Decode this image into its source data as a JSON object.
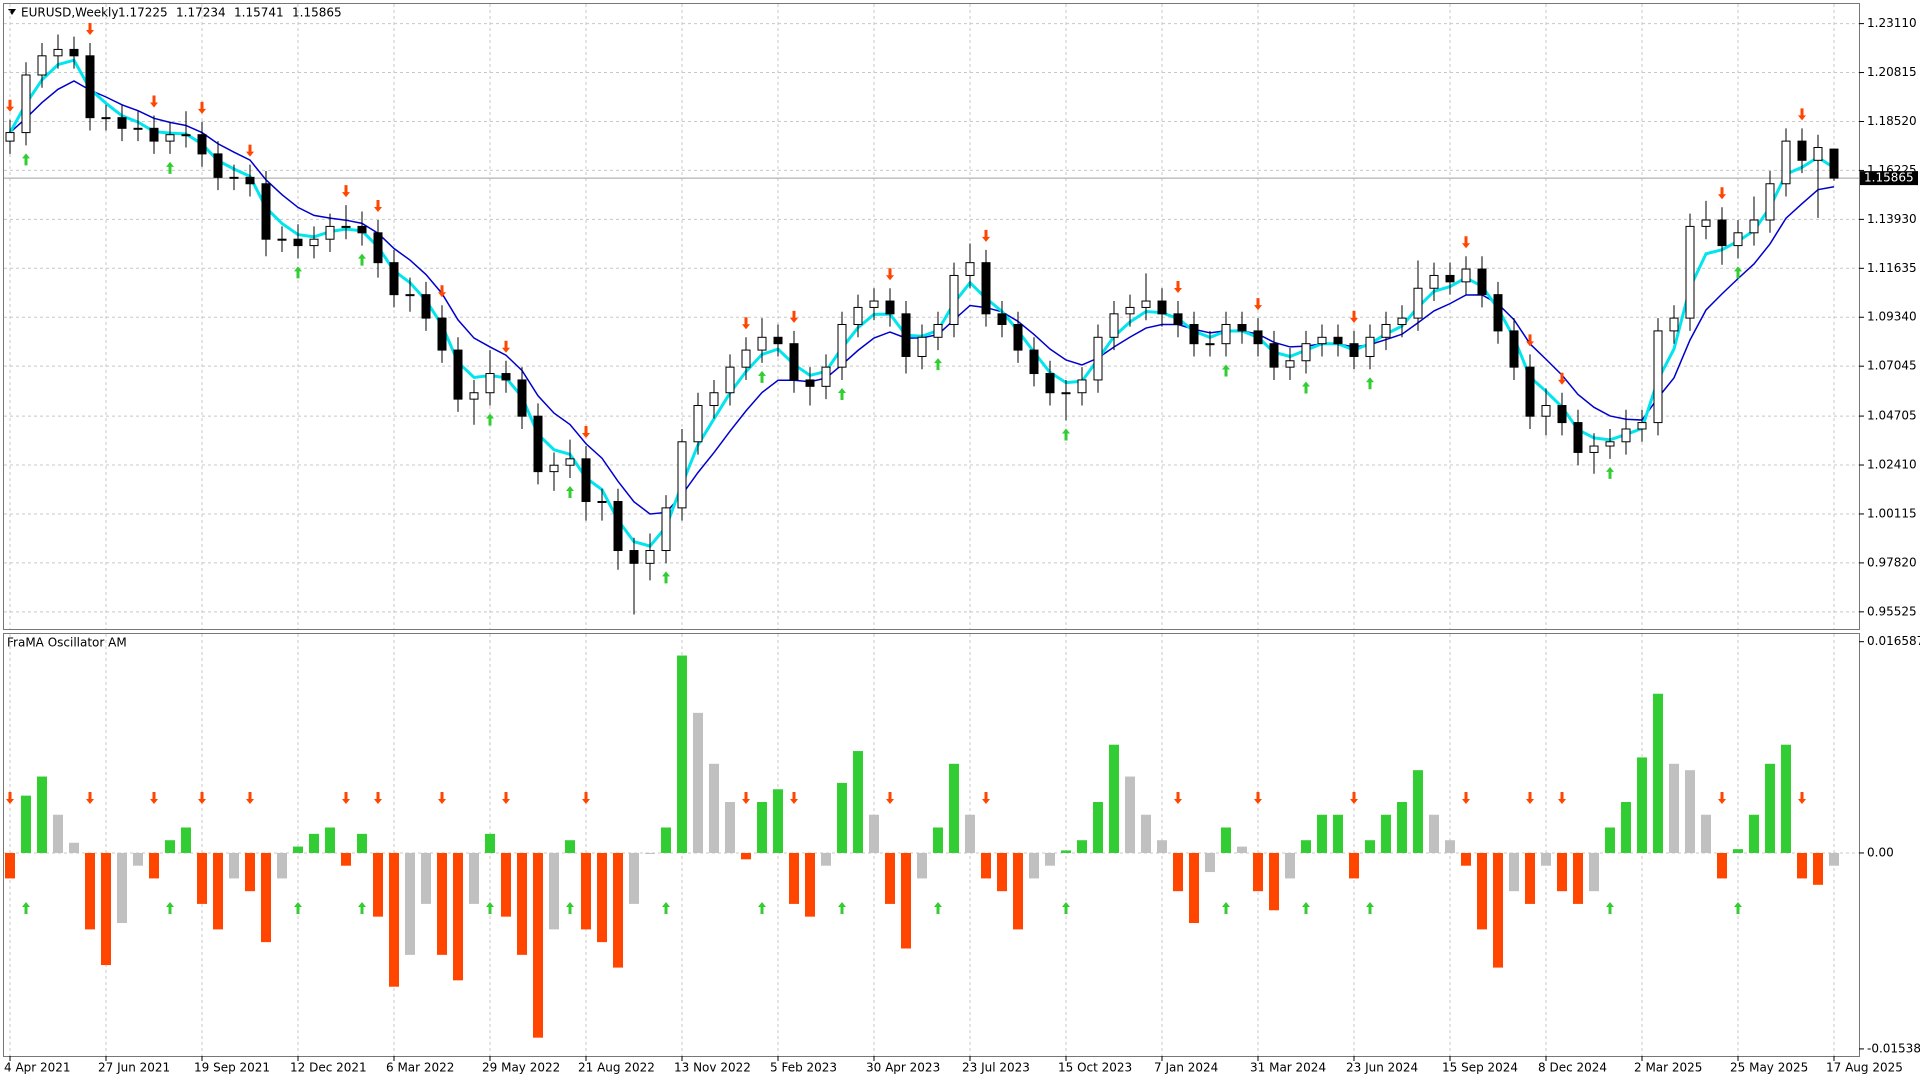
{
  "chart_data": [
    {
      "type": "candlestick",
      "title": "EURUSD,Weekly",
      "categories": [
        "4 Apr 2021",
        null,
        null,
        null,
        null,
        null,
        "27 Jun 2021",
        null,
        null,
        null,
        null,
        null,
        "19 Sep 2021",
        null,
        null,
        null,
        null,
        null,
        "12 Dec 2021",
        null,
        null,
        null,
        null,
        null,
        "6 Mar 2022",
        null,
        null,
        null,
        null,
        null,
        "29 May 2022",
        null,
        null,
        null,
        null,
        null,
        "21 Aug 2022",
        null,
        null,
        null,
        null,
        null,
        "13 Nov 2022",
        null,
        null,
        null,
        null,
        null,
        "5 Feb 2023",
        null,
        null,
        null,
        null,
        null,
        "30 Apr 2023",
        null,
        null,
        null,
        null,
        null,
        "23 Jul 2023",
        null,
        null,
        null,
        null,
        null,
        "15 Oct 2023",
        null,
        null,
        null,
        null,
        null,
        "7 Jan 2024",
        null,
        null,
        null,
        null,
        null,
        "31 Mar 2024",
        null,
        null,
        null,
        null,
        null,
        "23 Jun 2024",
        null,
        null,
        null,
        null,
        null,
        "15 Sep 2024",
        null,
        null,
        null,
        null,
        null,
        "8 Dec 2024",
        null,
        null,
        null,
        null,
        null,
        "2 Mar 2025",
        null,
        null,
        null,
        null,
        null,
        "25 May 2025",
        null,
        null,
        null,
        null,
        null,
        "17 Aug 2025"
      ],
      "open": [
        1.176,
        1.18,
        1.207,
        1.216,
        1.219,
        1.216,
        1.187,
        1.187,
        1.182,
        1.182,
        1.176,
        1.179,
        1.179,
        1.17,
        1.159,
        1.159,
        1.156,
        1.13,
        1.13,
        1.127,
        1.13,
        1.136,
        1.136,
        1.133,
        1.119,
        1.104,
        1.104,
        1.093,
        1.078,
        1.055,
        1.058,
        1.067,
        1.064,
        1.047,
        1.021,
        1.024,
        1.027,
        1.007,
        1.007,
        0.984,
        0.978,
        0.984,
        1.004,
        1.035,
        1.052,
        1.058,
        1.07,
        1.078,
        1.084,
        1.081,
        1.064,
        1.061,
        1.07,
        1.09,
        1.098,
        1.101,
        1.095,
        1.075,
        1.084,
        1.09,
        1.113,
        1.119,
        1.095,
        1.09,
        1.078,
        1.067,
        1.058,
        1.058,
        1.064,
        1.084,
        1.095,
        1.098,
        1.101,
        1.095,
        1.09,
        1.081,
        1.081,
        1.09,
        1.087,
        1.081,
        1.07,
        1.073,
        1.081,
        1.084,
        1.081,
        1.075,
        1.084,
        1.09,
        1.093,
        1.107,
        1.113,
        1.11,
        1.116,
        1.104,
        1.087,
        1.07,
        1.047,
        1.052,
        1.044,
        1.03,
        1.033,
        1.035,
        1.041,
        1.044,
        1.087,
        1.093,
        1.136,
        1.139,
        1.127,
        1.133,
        1.139,
        1.156,
        1.176,
        1.167,
        1.17225
      ],
      "high": [
        1.186,
        1.213,
        1.222,
        1.226,
        1.225,
        1.222,
        1.193,
        1.193,
        1.19,
        1.188,
        1.185,
        1.19,
        1.185,
        1.176,
        1.165,
        1.165,
        1.162,
        1.136,
        1.137,
        1.136,
        1.142,
        1.146,
        1.143,
        1.139,
        1.125,
        1.112,
        1.11,
        1.099,
        1.084,
        1.064,
        1.078,
        1.073,
        1.07,
        1.053,
        1.03,
        1.036,
        1.033,
        1.013,
        1.013,
        0.99,
        0.992,
        1.01,
        1.041,
        1.058,
        1.064,
        1.076,
        1.084,
        1.093,
        1.09,
        1.087,
        1.07,
        1.076,
        1.096,
        1.104,
        1.107,
        1.107,
        1.101,
        1.09,
        1.096,
        1.119,
        1.128,
        1.125,
        1.101,
        1.096,
        1.084,
        1.073,
        1.064,
        1.07,
        1.09,
        1.101,
        1.104,
        1.114,
        1.107,
        1.101,
        1.096,
        1.087,
        1.096,
        1.096,
        1.093,
        1.087,
        1.079,
        1.087,
        1.09,
        1.09,
        1.087,
        1.09,
        1.096,
        1.099,
        1.12,
        1.119,
        1.119,
        1.122,
        1.122,
        1.11,
        1.093,
        1.076,
        1.06,
        1.058,
        1.05,
        1.039,
        1.041,
        1.05,
        1.05,
        1.093,
        1.099,
        1.142,
        1.148,
        1.145,
        1.139,
        1.15,
        1.162,
        1.182,
        1.182,
        1.179,
        1.17234
      ],
      "low": [
        1.17,
        1.174,
        1.201,
        1.21,
        1.21,
        1.181,
        1.181,
        1.176,
        1.176,
        1.17,
        1.17,
        1.173,
        1.164,
        1.153,
        1.153,
        1.15,
        1.122,
        1.124,
        1.121,
        1.121,
        1.124,
        1.13,
        1.127,
        1.112,
        1.098,
        1.096,
        1.087,
        1.072,
        1.049,
        1.043,
        1.052,
        1.058,
        1.041,
        1.015,
        1.012,
        1.018,
        0.998,
        0.998,
        0.975,
        0.954,
        0.97,
        0.978,
        0.998,
        1.029,
        1.046,
        1.052,
        1.064,
        1.072,
        1.075,
        1.058,
        1.052,
        1.055,
        1.064,
        1.084,
        1.092,
        1.089,
        1.067,
        1.069,
        1.078,
        1.084,
        1.107,
        1.089,
        1.084,
        1.072,
        1.061,
        1.052,
        1.045,
        1.052,
        1.058,
        1.078,
        1.089,
        1.092,
        1.089,
        1.084,
        1.075,
        1.075,
        1.075,
        1.081,
        1.075,
        1.064,
        1.064,
        1.067,
        1.075,
        1.075,
        1.069,
        1.069,
        1.078,
        1.084,
        1.087,
        1.101,
        1.104,
        1.104,
        1.098,
        1.081,
        1.064,
        1.041,
        1.038,
        1.038,
        1.024,
        1.02,
        1.027,
        1.029,
        1.035,
        1.038,
        1.081,
        1.087,
        1.13,
        1.118,
        1.121,
        1.127,
        1.133,
        1.15,
        1.161,
        1.14,
        1.15741
      ],
      "close": [
        1.18,
        1.207,
        1.216,
        1.219,
        1.216,
        1.187,
        1.187,
        1.182,
        1.182,
        1.176,
        1.179,
        1.179,
        1.17,
        1.159,
        1.159,
        1.156,
        1.13,
        1.13,
        1.127,
        1.13,
        1.136,
        1.136,
        1.133,
        1.119,
        1.104,
        1.104,
        1.093,
        1.078,
        1.055,
        1.058,
        1.067,
        1.064,
        1.047,
        1.021,
        1.024,
        1.027,
        1.007,
        1.007,
        0.984,
        0.978,
        0.984,
        1.004,
        1.035,
        1.052,
        1.058,
        1.07,
        1.078,
        1.084,
        1.081,
        1.064,
        1.061,
        1.07,
        1.09,
        1.098,
        1.101,
        1.095,
        1.075,
        1.084,
        1.09,
        1.113,
        1.119,
        1.095,
        1.09,
        1.078,
        1.067,
        1.058,
        1.058,
        1.064,
        1.084,
        1.095,
        1.098,
        1.101,
        1.095,
        1.09,
        1.081,
        1.081,
        1.09,
        1.087,
        1.081,
        1.07,
        1.073,
        1.081,
        1.084,
        1.081,
        1.075,
        1.084,
        1.09,
        1.093,
        1.107,
        1.113,
        1.11,
        1.116,
        1.104,
        1.087,
        1.07,
        1.047,
        1.052,
        1.044,
        1.03,
        1.033,
        1.035,
        1.041,
        1.044,
        1.087,
        1.093,
        1.136,
        1.139,
        1.127,
        1.133,
        1.139,
        1.156,
        1.176,
        1.167,
        1.173,
        1.15865
      ],
      "bull_color": "#ffffff",
      "bear_color": "#000000",
      "fast_color": "#00e5ee",
      "slow_color": "#0000cd",
      "ylim": [
        0.9472,
        1.2403
      ],
      "yticks": [
        {
          "value": 1.2311,
          "label": "1.23110"
        },
        1.20815,
        {
          "value": 1.1852,
          "label": "1.18520"
        },
        1.16225,
        {
          "value": 1.1393,
          "label": "1.13930"
        },
        1.11635,
        {
          "value": 1.0934,
          "label": "1.09340"
        },
        1.07045,
        1.04705,
        {
          "value": 1.0241,
          "label": "1.02410"
        },
        1.00115,
        {
          "value": 0.9782,
          "label": "0.97820"
        },
        0.95525
      ],
      "grid": true
    },
    {
      "type": "bar",
      "title": "FraMA Oscillator AM",
      "values": [
        -0.002,
        0.0045,
        0.006,
        0.003,
        0.0008,
        -0.006,
        -0.0088,
        -0.0055,
        -0.001,
        -0.002,
        0.001,
        0.002,
        -0.004,
        -0.006,
        -0.002,
        -0.003,
        -0.007,
        -0.002,
        0.0005,
        0.0015,
        0.002,
        -0.001,
        0.0015,
        -0.005,
        -0.0105,
        -0.008,
        -0.004,
        -0.008,
        -0.01,
        -0.004,
        0.0015,
        -0.005,
        -0.008,
        -0.0145,
        -0.006,
        0.001,
        -0.006,
        -0.007,
        -0.009,
        -0.004,
        0,
        0.002,
        0.0155,
        0.011,
        0.007,
        0.004,
        -0.0005,
        0.004,
        0.005,
        -0.004,
        -0.005,
        -0.001,
        0.0055,
        0.008,
        0.003,
        -0.004,
        -0.0075,
        -0.002,
        0.002,
        0.007,
        0.003,
        -0.002,
        -0.003,
        -0.006,
        -0.002,
        -0.001,
        0.0002,
        0.001,
        0.004,
        0.0085,
        0.006,
        0.003,
        0.001,
        -0.003,
        -0.0055,
        -0.0015,
        0.002,
        0.0005,
        -0.003,
        -0.0045,
        -0.002,
        0.001,
        0.003,
        0.003,
        -0.002,
        0.001,
        0.003,
        0.004,
        0.0065,
        0.003,
        0.001,
        -0.001,
        -0.006,
        -0.009,
        -0.003,
        -0.004,
        -0.001,
        -0.003,
        -0.004,
        -0.003,
        0.002,
        0.004,
        0.0075,
        0.0125,
        0.007,
        0.0065,
        0.003,
        -0.002,
        0.0003,
        0.003,
        0.007,
        0.0085,
        -0.002,
        -0.0025,
        -0.001
      ],
      "up_color": "#32cd32",
      "down_color": "#ff4500",
      "flat_color": "#c0c0c0",
      "ylim": [
        -0.01594,
        0.01719
      ],
      "yticks": [
        0.016587,
        {
          "value": 0,
          "label": "0.00"
        },
        -0.015384
      ],
      "grid": true
    }
  ]
}
